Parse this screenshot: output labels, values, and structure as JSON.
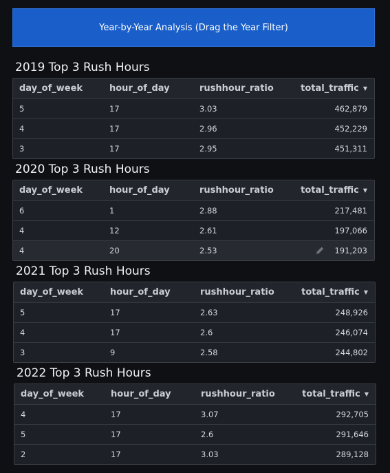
{
  "banner": {
    "label": "Year-by-Year Analysis (Drag the Year Filter)"
  },
  "columns": [
    "day_of_week",
    "hour_of_day",
    "rushhour_ratio",
    "total_traffic"
  ],
  "sort_icon": "caret-down-icon",
  "edit_icon": "pencil-icon",
  "tables": [
    {
      "title": "2019 Top 3 Rush Hours",
      "rows": [
        [
          "5",
          "17",
          "3.03",
          "462,879"
        ],
        [
          "4",
          "17",
          "2.96",
          "452,229"
        ],
        [
          "3",
          "17",
          "2.95",
          "451,311"
        ]
      ]
    },
    {
      "title": "2020 Top 3 Rush Hours",
      "rows": [
        [
          "6",
          "1",
          "2.88",
          "217,481"
        ],
        [
          "4",
          "12",
          "2.61",
          "197,066"
        ],
        [
          "4",
          "20",
          "2.53",
          "191,203"
        ]
      ]
    },
    {
      "title": "2021 Top 3 Rush Hours",
      "rows": [
        [
          "5",
          "17",
          "2.63",
          "248,926"
        ],
        [
          "4",
          "17",
          "2.6",
          "246,074"
        ],
        [
          "3",
          "9",
          "2.58",
          "244,802"
        ]
      ]
    },
    {
      "title": "2022 Top 3 Rush Hours",
      "rows": [
        [
          "4",
          "17",
          "3.07",
          "292,705"
        ],
        [
          "5",
          "17",
          "2.6",
          "291,646"
        ],
        [
          "2",
          "17",
          "3.03",
          "289,128"
        ]
      ]
    }
  ]
}
